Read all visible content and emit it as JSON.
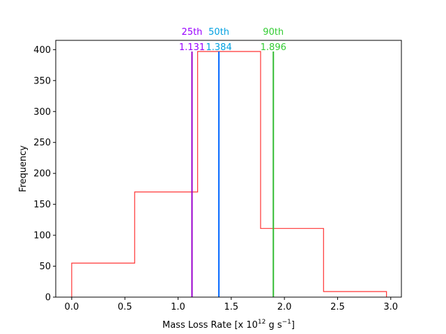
{
  "chart_data": {
    "type": "histogram",
    "xlabel": "Mass Loss Rate [x 10",
    "xlabel_sup": "12",
    "xlabel_tail": " g s",
    "xlabel_sup2": "−1",
    "xlabel_end": "]",
    "ylabel": "Frequency",
    "xlim": [
      -0.15,
      3.1
    ],
    "ylim": [
      0,
      415
    ],
    "xticks": [
      0.0,
      0.5,
      1.0,
      1.5,
      2.0,
      2.5,
      3.0
    ],
    "xtick_labels": [
      "0.0",
      "0.5",
      "1.0",
      "1.5",
      "2.0",
      "2.5",
      "3.0"
    ],
    "yticks": [
      0,
      50,
      100,
      150,
      200,
      250,
      300,
      350,
      400
    ],
    "ytick_labels": [
      "0",
      "50",
      "100",
      "150",
      "200",
      "250",
      "300",
      "350",
      "400"
    ],
    "histogram": {
      "color": "#ff3333",
      "bin_edges": [
        0.0,
        0.592,
        1.184,
        1.776,
        2.368,
        2.96
      ],
      "counts": [
        55,
        170,
        397,
        111,
        9
      ]
    },
    "percentiles": [
      {
        "name": "25th",
        "value": 1.131,
        "label": "1.131",
        "color": "#9900cc"
      },
      {
        "name": "50th",
        "value": 1.384,
        "label": "1.384",
        "color": "#0066ff"
      },
      {
        "name": "90th",
        "value": 1.896,
        "label": "1.896",
        "color": "#33bb33"
      }
    ],
    "percentile_label_colors": [
      "#9900ff",
      "#00a0e0",
      "#33cc33"
    ],
    "line_top": 397
  }
}
